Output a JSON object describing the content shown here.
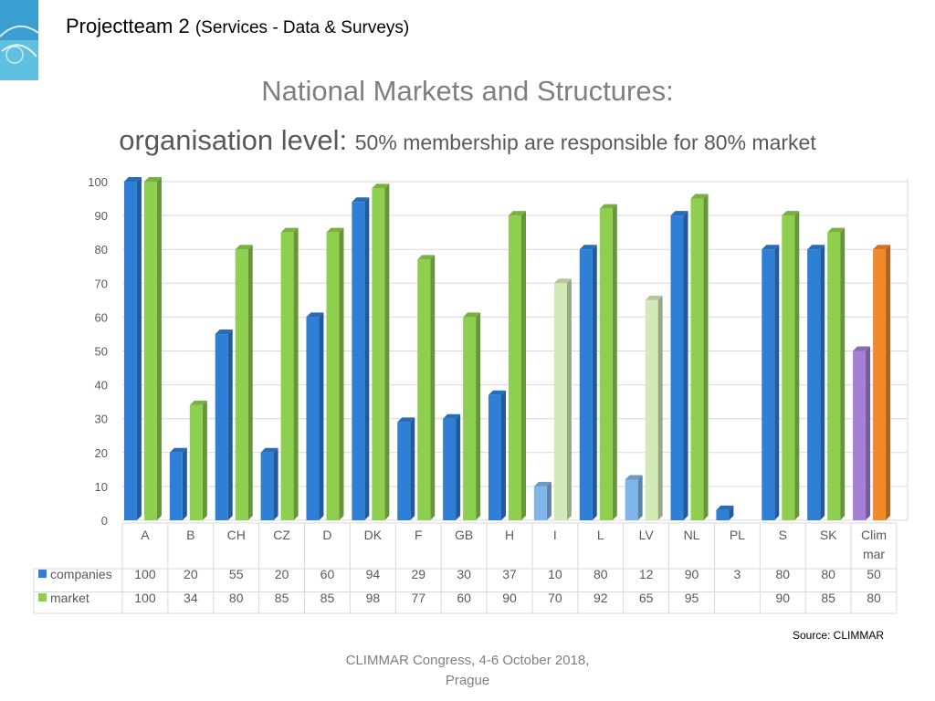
{
  "header": {
    "title": "Projectteam 2",
    "subtitle": "(Services - Data & Surveys)"
  },
  "slide_title": {
    "line1": "National Markets and Structures:",
    "line2_main": "organisation level:",
    "line2_rest": "50% membership are responsible for 80% market"
  },
  "chart_data": {
    "type": "bar",
    "view": "3d-clustered-column-with-data-table",
    "categories": [
      "A",
      "B",
      "CH",
      "CZ",
      "D",
      "DK",
      "F",
      "GB",
      "H",
      "I",
      "L",
      "LV",
      "NL",
      "PL",
      "S",
      "SK",
      "Climmar"
    ],
    "category_labels": [
      [
        "A"
      ],
      [
        "B"
      ],
      [
        "CH"
      ],
      [
        "CZ"
      ],
      [
        "D"
      ],
      [
        "DK"
      ],
      [
        "F"
      ],
      [
        "GB"
      ],
      [
        "H"
      ],
      [
        "I"
      ],
      [
        "L"
      ],
      [
        "LV"
      ],
      [
        "NL"
      ],
      [
        "PL"
      ],
      [
        "S"
      ],
      [
        "SK"
      ],
      [
        "Clim",
        "mar"
      ]
    ],
    "series": [
      {
        "name": "companies",
        "color": "#2f7fd6",
        "values": [
          100,
          20,
          55,
          20,
          60,
          94,
          29,
          30,
          37,
          10,
          80,
          12,
          90,
          3,
          80,
          80,
          50
        ]
      },
      {
        "name": "market",
        "color": "#8fcf4f",
        "values": [
          100,
          34,
          80,
          85,
          85,
          98,
          77,
          60,
          90,
          70,
          92,
          65,
          95,
          null,
          90,
          85,
          80
        ]
      }
    ],
    "highlight_colors": {
      "companies_light": "#7fb5e8",
      "market_light": "#d3eab8",
      "climmar_companies": "#a67fd6",
      "climmar_market": "#f08a2a"
    },
    "light_categories": [
      "I",
      "LV"
    ],
    "y_ticks": [
      0,
      10,
      20,
      30,
      40,
      50,
      60,
      70,
      80,
      90,
      100
    ],
    "ylim": [
      0,
      100
    ],
    "grid": true,
    "legend": "data-table"
  },
  "source": "Source: CLIMMAR",
  "footer": {
    "line1": "CLIMMAR Congress, 4-6 October 2018,",
    "line2": "Prague"
  }
}
